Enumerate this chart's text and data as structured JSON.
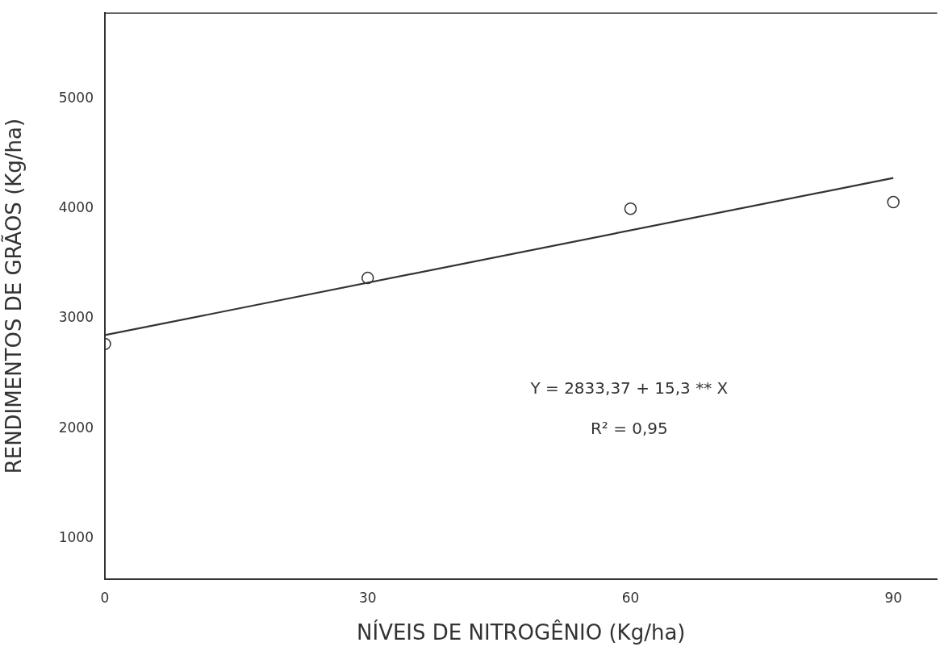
{
  "chart_data": {
    "type": "scatter",
    "xlabel": "NÍVEIS DE NITROGÊNIO (Kg/ha)",
    "ylabel": "RENDIMENTOS DE GRÃOS (Kg/ha)",
    "xlim": [
      0,
      95
    ],
    "xticks": [
      0,
      30,
      60,
      90
    ],
    "ylim": [
      630,
      5780
    ],
    "yticks": [
      1000,
      2000,
      3000,
      4000,
      5000
    ],
    "grid": false,
    "legend": false,
    "marker": "circle",
    "series": [
      {
        "color": "#333333",
        "x": [
          0,
          30,
          60,
          90
        ],
        "values": [
          2770,
          3370,
          4000,
          4060
        ]
      },
      {
        "type": "line",
        "color": "#333333",
        "x": [
          0,
          90
        ],
        "values": [
          2850,
          4280
        ],
        "marker": "none"
      }
    ],
    "annotations": [
      "Y = 2833,37 + 15,3 ** X",
      "R² = 0,95"
    ]
  }
}
